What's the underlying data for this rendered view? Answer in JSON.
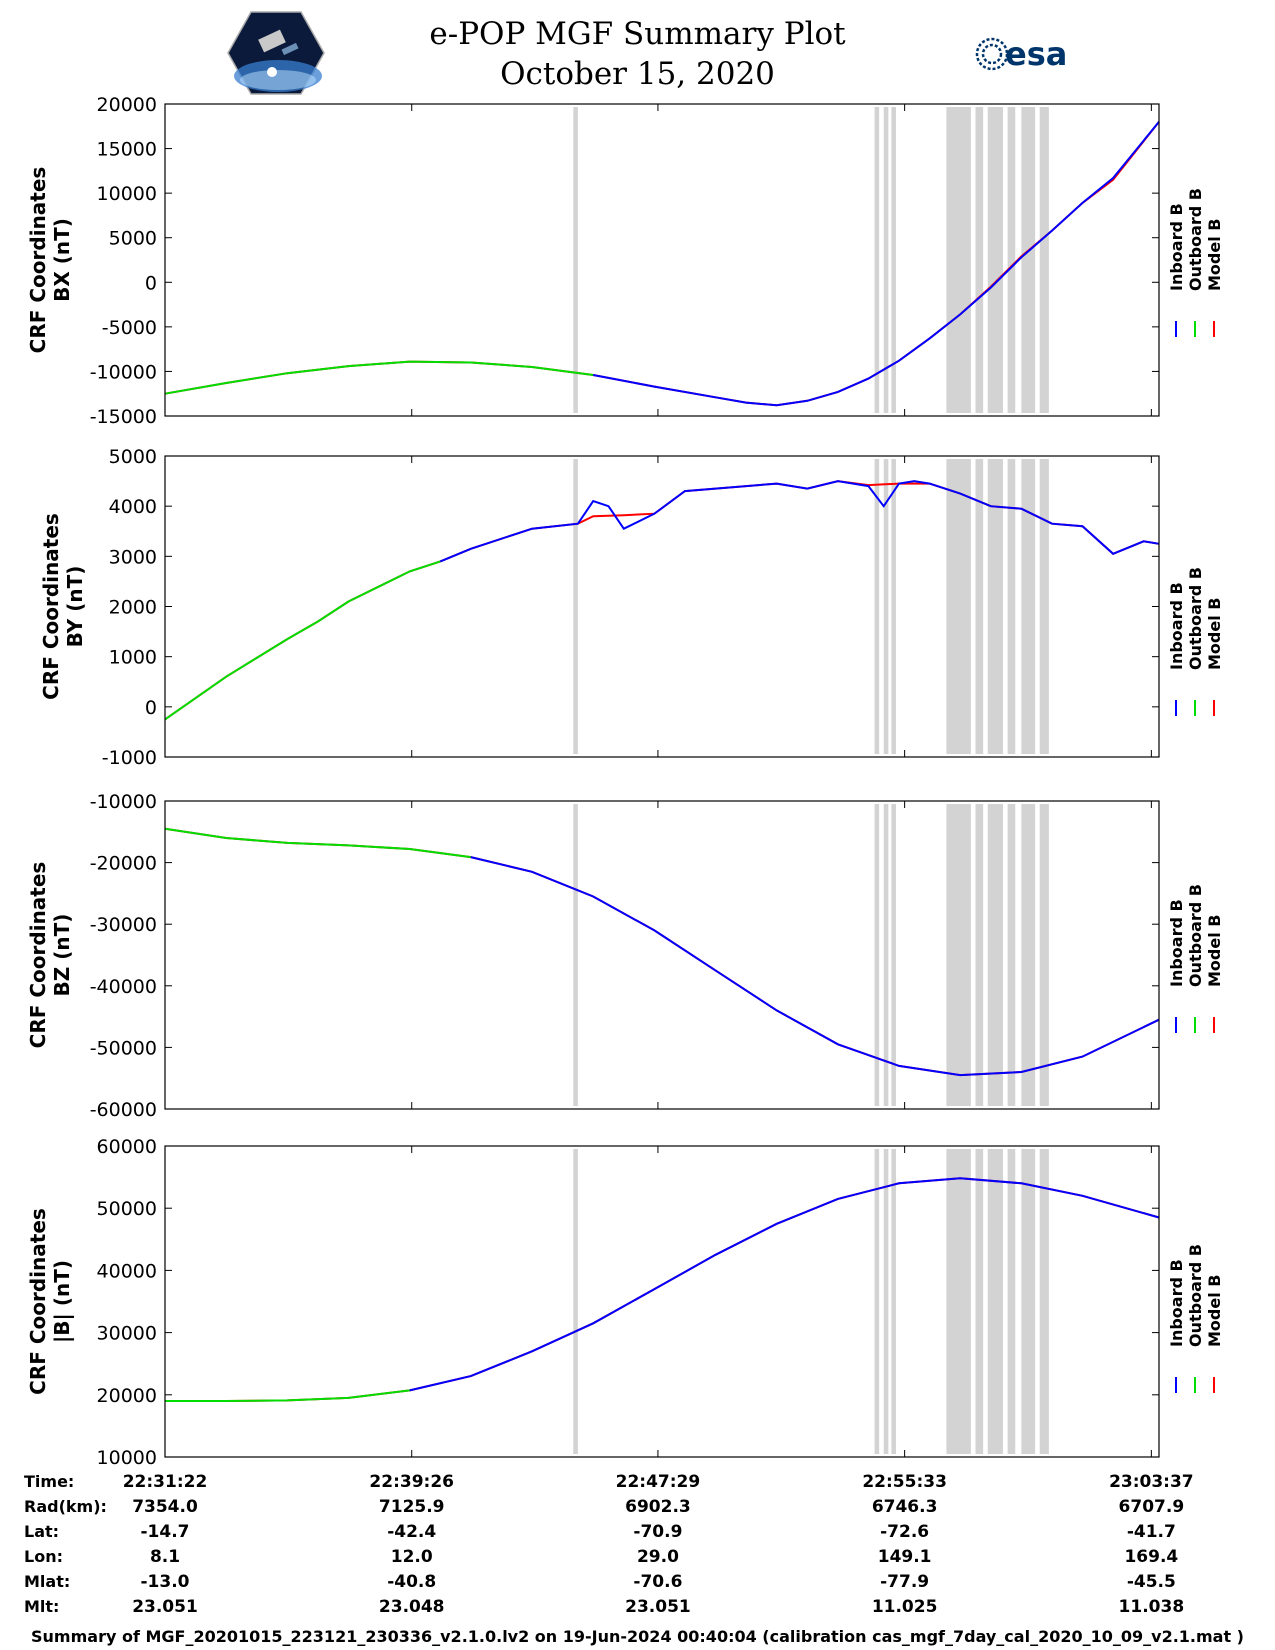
{
  "header": {
    "title": "e-POP MGF Summary Plot",
    "date": "October 15, 2020",
    "logo_left": "cassiope-logo",
    "logo_right": "esa-logo",
    "logo_right_text": "esa"
  },
  "colors": {
    "inboard": "#0000ff",
    "outboard": "#00dd00",
    "model": "#ff0000",
    "shade": "#d3d3d3"
  },
  "legend": [
    "Inboard B",
    "Outboard B",
    "Model B"
  ],
  "chart_data": [
    {
      "type": "line",
      "ylabel": [
        "CRF Coordinates",
        "BX (nT)"
      ],
      "ylim": [
        -15000,
        20000
      ],
      "yticks": [
        20000,
        15000,
        10000,
        5000,
        0,
        -5000,
        -10000,
        -15000
      ],
      "xlim": [
        0,
        32.5
      ],
      "green_until": 14,
      "series": [
        {
          "name": "Inboard B",
          "x": [
            0,
            2,
            4,
            6,
            8,
            10,
            12,
            14,
            16,
            18,
            19,
            20,
            21,
            22,
            23,
            24,
            25,
            26,
            27,
            28,
            29,
            30,
            31,
            32.5
          ],
          "values": [
            -12500,
            -11300,
            -10200,
            -9400,
            -8900,
            -9000,
            -9500,
            -10400,
            -11700,
            -12900,
            -13500,
            -13800,
            -13300,
            -12300,
            -10800,
            -8800,
            -6300,
            -3600,
            -600,
            2800,
            5800,
            8900,
            11700,
            18000
          ]
        },
        {
          "name": "Model B",
          "x": [
            0,
            2,
            4,
            6,
            8,
            10,
            12,
            14,
            16,
            18,
            19,
            20,
            21,
            22,
            23,
            24,
            25,
            26,
            27,
            28,
            29,
            30,
            31,
            32.5
          ],
          "values": [
            -12500,
            -11300,
            -10200,
            -9400,
            -8900,
            -9000,
            -9500,
            -10400,
            -11700,
            -12900,
            -13500,
            -13800,
            -13300,
            -12300,
            -10800,
            -8800,
            -6300,
            -3600,
            -500,
            2900,
            5800,
            8900,
            11500,
            18000
          ]
        }
      ]
    },
    {
      "type": "line",
      "ylabel": [
        "CRF Coordinates",
        "BY (nT)"
      ],
      "ylim": [
        -1000,
        5000
      ],
      "yticks": [
        5000,
        4000,
        3000,
        2000,
        1000,
        0,
        -1000
      ],
      "xlim": [
        0,
        32.5
      ],
      "green_until": 9,
      "series": [
        {
          "name": "Inboard B",
          "x": [
            0,
            2,
            4,
            5,
            6,
            8,
            9,
            10,
            12,
            13.5,
            14,
            14.5,
            15,
            16,
            17,
            18,
            20,
            21,
            22,
            23,
            23.5,
            24,
            24.5,
            25,
            26,
            27,
            28,
            29,
            30,
            31,
            32,
            32.5
          ],
          "values": [
            -250,
            600,
            1350,
            1700,
            2100,
            2700,
            2900,
            3150,
            3550,
            3650,
            4100,
            4000,
            3550,
            3850,
            4300,
            4350,
            4450,
            4350,
            4500,
            4400,
            4000,
            4450,
            4500,
            4450,
            4250,
            4000,
            3950,
            3650,
            3600,
            3050,
            3300,
            3250
          ]
        },
        {
          "name": "Model B",
          "x": [
            0,
            2,
            4,
            5,
            6,
            8,
            9,
            10,
            12,
            13.5,
            14,
            15,
            16,
            17,
            18,
            20,
            21,
            22,
            23,
            24,
            25,
            26,
            27,
            28,
            29,
            30,
            31,
            32,
            32.5
          ],
          "values": [
            -250,
            600,
            1350,
            1700,
            2100,
            2700,
            2900,
            3150,
            3550,
            3650,
            3800,
            3820,
            3850,
            4300,
            4350,
            4450,
            4350,
            4500,
            4420,
            4450,
            4450,
            4250,
            4000,
            3950,
            3650,
            3600,
            3050,
            3300,
            3250
          ]
        }
      ]
    },
    {
      "type": "line",
      "ylabel": [
        "CRF Coordinates",
        "BZ (nT)"
      ],
      "ylim": [
        -60000,
        -10000
      ],
      "yticks": [
        -10000,
        -20000,
        -30000,
        -40000,
        -50000,
        -60000
      ],
      "xlim": [
        0,
        32.5
      ],
      "green_until": 10,
      "series": [
        {
          "name": "Inboard B",
          "x": [
            0,
            2,
            4,
            6,
            8,
            10,
            12,
            14,
            16,
            18,
            20,
            22,
            24,
            26,
            28,
            30,
            32.5
          ],
          "values": [
            -14500,
            -16000,
            -16800,
            -17200,
            -17800,
            -19100,
            -21500,
            -25500,
            -31000,
            -37500,
            -44000,
            -49500,
            -53000,
            -54500,
            -54000,
            -51500,
            -45500
          ]
        },
        {
          "name": "Model B",
          "x": [
            0,
            2,
            4,
            6,
            8,
            10,
            12,
            14,
            16,
            18,
            20,
            22,
            24,
            26,
            28,
            30,
            32.5
          ],
          "values": [
            -14500,
            -16000,
            -16800,
            -17200,
            -17800,
            -19100,
            -21500,
            -25500,
            -31000,
            -37500,
            -44000,
            -49500,
            -53000,
            -54500,
            -54000,
            -51500,
            -45500
          ]
        }
      ]
    },
    {
      "type": "line",
      "ylabel": [
        "CRF Coordinates",
        "|B| (nT)"
      ],
      "ylim": [
        10000,
        60000
      ],
      "yticks": [
        60000,
        50000,
        40000,
        30000,
        20000,
        10000
      ],
      "xlim": [
        0,
        32.5
      ],
      "green_until": 8,
      "series": [
        {
          "name": "Inboard B",
          "x": [
            0,
            2,
            4,
            6,
            8,
            10,
            12,
            14,
            16,
            18,
            20,
            22,
            24,
            26,
            28,
            30,
            32.5
          ],
          "values": [
            19000,
            19000,
            19100,
            19500,
            20700,
            23000,
            27000,
            31500,
            37000,
            42500,
            47500,
            51500,
            54000,
            54800,
            54000,
            52000,
            48500
          ]
        },
        {
          "name": "Model B",
          "x": [
            0,
            2,
            4,
            6,
            8,
            10,
            12,
            14,
            16,
            18,
            20,
            22,
            24,
            26,
            28,
            30,
            32.5
          ],
          "values": [
            19000,
            19000,
            19100,
            19500,
            20700,
            23000,
            27000,
            31500,
            37000,
            42500,
            47500,
            51500,
            54000,
            54800,
            54000,
            52000,
            48500
          ]
        }
      ]
    }
  ],
  "data_gaps": [
    [
      13.35,
      13.5
    ],
    [
      23.2,
      23.35
    ],
    [
      23.5,
      23.65
    ],
    [
      23.75,
      23.9
    ],
    [
      25.55,
      26.35
    ],
    [
      26.5,
      26.75
    ],
    [
      26.9,
      27.4
    ],
    [
      27.55,
      27.8
    ],
    [
      28.0,
      28.45
    ],
    [
      28.6,
      28.9
    ]
  ],
  "ephemeris": {
    "row_labels": [
      "Time:",
      "Rad(km):",
      "Lat:",
      "Lon:",
      "Mlat:",
      "Mlt:"
    ],
    "columns": [
      {
        "x": 0,
        "values": [
          "22:31:22",
          "7354.0",
          "-14.7",
          "8.1",
          "-13.0",
          "23.051"
        ]
      },
      {
        "x": 8.067,
        "values": [
          "22:39:26",
          "7125.9",
          "-42.4",
          "12.0",
          "-40.8",
          "23.048"
        ]
      },
      {
        "x": 16.117,
        "values": [
          "22:47:29",
          "6902.3",
          "-70.9",
          "29.0",
          "-70.6",
          "23.051"
        ]
      },
      {
        "x": 24.183,
        "values": [
          "22:55:33",
          "6746.3",
          "-72.6",
          "149.1",
          "-77.9",
          "11.025"
        ]
      },
      {
        "x": 32.25,
        "values": [
          "23:03:37",
          "6707.9",
          "-41.7",
          "169.4",
          "-45.5",
          "11.038"
        ]
      }
    ]
  },
  "footer": "Summary of MGF_20201015_223121_230336_v2.1.0.lv2 on 19-Jun-2024 00:40:04 (calibration cas_mgf_7day_cal_2020_10_09_v2.1.mat )"
}
